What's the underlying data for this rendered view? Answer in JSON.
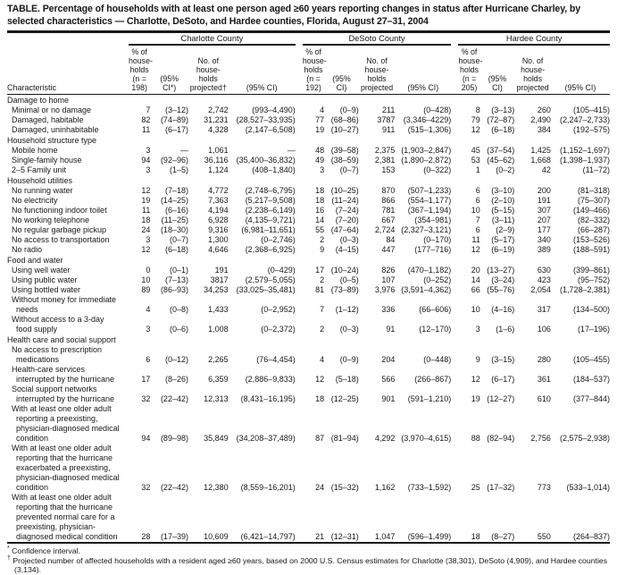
{
  "title": "TABLE. Percentage of households with at least one person aged ≥60 years reporting changes in status after Hurricane Charley, by selected characteristics — Charlotte, DeSoto, and Hardee counties, Florida, August 27–31, 2004",
  "header": {
    "characteristic": "Characteristic",
    "groups": [
      {
        "name": "Charlotte County",
        "pct": "% of\nhouse-\nholds\n(n = 198)",
        "pct_ci": "(95%\nCI*)",
        "no": "No. of\nhouse-\nholds\nprojected†",
        "no_ci": "(95% CI)"
      },
      {
        "name": "DeSoto County",
        "pct": "% of\nhouse-\nholds\n(n = 192)",
        "pct_ci": "(95%\nCI)",
        "no": "No. of\nhouse-\nholds\nprojected",
        "no_ci": "(95% CI)"
      },
      {
        "name": "Hardee County",
        "pct": "% of\nhouse-\nholds\n(n = 205)",
        "pct_ci": "(95%\nCI)",
        "no": "No. of\nhouse-\nholds\nprojected",
        "no_ci": "(95% CI)"
      }
    ]
  },
  "rows": [
    {
      "type": "section",
      "label": "Damage to home"
    },
    {
      "type": "data",
      "label": "Minimal or no damage",
      "values": [
        "7",
        "(3–12)",
        "2,742",
        "(993–4,490)",
        "4",
        "(0–9)",
        "211",
        "(0–428)",
        "8",
        "(3–13)",
        "260",
        "(105–415)"
      ]
    },
    {
      "type": "data",
      "label": "Damaged, habitable",
      "values": [
        "82",
        "(74–89)",
        "31,231",
        "(28,527–33,935)",
        "77",
        "(68–86)",
        "3787",
        "(3,346–4229)",
        "79",
        "(72–87)",
        "2,490",
        "(2,247–2,733)"
      ]
    },
    {
      "type": "data",
      "label": "Damaged, uninhabitable",
      "values": [
        "11",
        "(6–17)",
        "4,328",
        "(2,147–6,508)",
        "19",
        "(10–27)",
        "911",
        "(515–1,306)",
        "12",
        "(6–18)",
        "384",
        "(192–575)"
      ]
    },
    {
      "type": "section",
      "label": "Household structure type"
    },
    {
      "type": "data",
      "label": "Mobile home",
      "values": [
        "3",
        "—",
        "1,061",
        "—",
        "48",
        "(39–58)",
        "2,375",
        "(1,903–2,847)",
        "45",
        "(37–54)",
        "1,425",
        "(1,152–1,697)"
      ]
    },
    {
      "type": "data",
      "label": "Single-family house",
      "values": [
        "94",
        "(92–96)",
        "36,116",
        "(35,400–36,832)",
        "49",
        "(38–59)",
        "2,381",
        "(1,890–2,872)",
        "53",
        "(45–62)",
        "1,668",
        "(1,398–1,937)"
      ]
    },
    {
      "type": "data",
      "label": "2–5 Family unit",
      "values": [
        "3",
        "(1–5)",
        "1,124",
        "(408–1,840)",
        "3",
        "(0–7)",
        "153",
        "(0–322)",
        "1",
        "(0–2)",
        "42",
        "(11–72)"
      ]
    },
    {
      "type": "section",
      "label": "Household utilities"
    },
    {
      "type": "data",
      "label": "No running water",
      "values": [
        "12",
        "(7–18)",
        "4,772",
        "(2,748–6,795)",
        "18",
        "(10–25)",
        "870",
        "(507–1,233)",
        "6",
        "(3–10)",
        "200",
        "(81–318)"
      ]
    },
    {
      "type": "data",
      "label": "No electricity",
      "values": [
        "19",
        "(14–25)",
        "7,363",
        "(5,217–9,508)",
        "18",
        "(11–24)",
        "866",
        "(554–1,177)",
        "6",
        "(2–10)",
        "191",
        "(75–307)"
      ]
    },
    {
      "type": "data",
      "label": "No functioning indoor toilet",
      "values": [
        "11",
        "(6–16)",
        "4,194",
        "(2,238–6,149)",
        "16",
        "(7–24)",
        "781",
        "(367–1,194)",
        "10",
        "(5–15)",
        "307",
        "(149–466)"
      ]
    },
    {
      "type": "data",
      "label": "No working telephone",
      "values": [
        "18",
        "(11–25)",
        "6,928",
        "(4,135–9,721)",
        "14",
        "(7–20)",
        "667",
        "(354–981)",
        "7",
        "(3–11)",
        "207",
        "(82–332)"
      ]
    },
    {
      "type": "data",
      "label": "No regular garbage pickup",
      "values": [
        "24",
        "(18–30)",
        "9,316",
        "(6,981–11,651)",
        "55",
        "(47–64)",
        "2,724",
        "(2,327–3,121)",
        "6",
        "(2–9)",
        "177",
        "(66–287)"
      ]
    },
    {
      "type": "data",
      "label": "No access to transportation",
      "values": [
        "3",
        "(0–7)",
        "1,300",
        "(0–2,746)",
        "2",
        "(0–3)",
        "84",
        "(0–170)",
        "11",
        "(5–17)",
        "340",
        "(153–526)"
      ]
    },
    {
      "type": "data",
      "label": "No radio",
      "values": [
        "12",
        "(6–18)",
        "4,646",
        "(2,368–6,925)",
        "9",
        "(4–15)",
        "447",
        "(177–716)",
        "12",
        "(6–19)",
        "389",
        "(188–591)"
      ]
    },
    {
      "type": "section",
      "label": "Food and water"
    },
    {
      "type": "data",
      "label": "Using well water",
      "values": [
        "0",
        "(0–1)",
        "191",
        "(0–429)",
        "17",
        "(10–24)",
        "826",
        "(470–1,182)",
        "20",
        "(13–27)",
        "630",
        "(399–861)"
      ]
    },
    {
      "type": "data",
      "label": "Using public water",
      "values": [
        "10",
        "(7–13)",
        "3817",
        "(2,579–5,055)",
        "2",
        "(0–5)",
        "107",
        "(0–252)",
        "14",
        "(3–24)",
        "423",
        "(95–752)"
      ]
    },
    {
      "type": "data",
      "label": "Using bottled water",
      "values": [
        "89",
        "(86–93)",
        "34,253",
        "(33,025–35,481)",
        "81",
        "(73–89)",
        "3,976",
        "(3,591–4,362)",
        "66",
        "(55–76)",
        "2,054",
        "(1,728–2,381)"
      ]
    },
    {
      "type": "data",
      "label": "Without money for immediate\nneeds",
      "values": [
        "4",
        "(0–8)",
        "1,433",
        "(0–2,952)",
        "7",
        "(1–12)",
        "336",
        "(66–606)",
        "10",
        "(4–16)",
        "317",
        "(134–500)"
      ]
    },
    {
      "type": "data",
      "label": "Without access to a 3-day\nfood supply",
      "values": [
        "3",
        "(0–6)",
        "1,008",
        "(0–2,372)",
        "2",
        "(0–3)",
        "91",
        "(12–170)",
        "3",
        "(1–6)",
        "106",
        "(17–196)"
      ]
    },
    {
      "type": "section",
      "label": "Health care and social support"
    },
    {
      "type": "data",
      "label": "No access to prescription\nmedications",
      "values": [
        "6",
        "(0–12)",
        "2,265",
        "(76–4,454)",
        "4",
        "(0–9)",
        "204",
        "(0–448)",
        "9",
        "(3–15)",
        "280",
        "(105–455)"
      ]
    },
    {
      "type": "data",
      "label": "Health-care services\ninterrupted by the hurricane",
      "values": [
        "17",
        "(8–26)",
        "6,359",
        "(2,886–9,833)",
        "12",
        "(5–18)",
        "566",
        "(266–867)",
        "12",
        "(6–17)",
        "361",
        "(184–537)"
      ]
    },
    {
      "type": "data",
      "label": "Social support networks\ninterrupted by the hurricane",
      "values": [
        "32",
        "(22–42)",
        "12,313",
        "(8,431–16,195)",
        "18",
        "(12–25)",
        "901",
        "(591–1,210)",
        "19",
        "(12–27)",
        "610",
        "(377–844)"
      ]
    },
    {
      "type": "data",
      "label": "With at least one older adult\nreporting a preexisting,\nphysician-diagnosed medical\ncondition",
      "values": [
        "94",
        "(89–98)",
        "35,849",
        "(34,208–37,489)",
        "87",
        "(81–94)",
        "4,292",
        "(3,970–4,615)",
        "88",
        "(82–94)",
        "2,756",
        "(2,575–2,938)"
      ]
    },
    {
      "type": "data",
      "label": "With at least one older adult\nreporting that the hurricane\nexacerbated a preexisting,\nphysician-diagnosed medical\ncondition",
      "values": [
        "32",
        "(22–42)",
        "12,380",
        "(8,559–16,201)",
        "24",
        "(15–32)",
        "1,162",
        "(733–1,592)",
        "25",
        "(17–32)",
        "773",
        "(533–1,014)"
      ]
    },
    {
      "type": "data",
      "label": "With at least one older adult\nreporting that the hurricane\nprevented normal care for a\npreexisting, physician-\ndiagnosed medical condition",
      "values": [
        "28",
        "(17–39)",
        "10,609",
        "(6,421–14,797)",
        "21",
        "(12–31)",
        "1,047",
        "(596–1,499)",
        "18",
        "(8–27)",
        "550",
        "(264–837)"
      ]
    }
  ],
  "footnotes": [
    {
      "marker": "*",
      "text": "Confidence interval."
    },
    {
      "marker": "†",
      "text": "Projected number of affected households with a resident aged ≥60 years, based on 2000 U.S. Census estimates for Charlotte (38,301), DeSoto (4,909), and Hardee counties (3,134)."
    }
  ]
}
